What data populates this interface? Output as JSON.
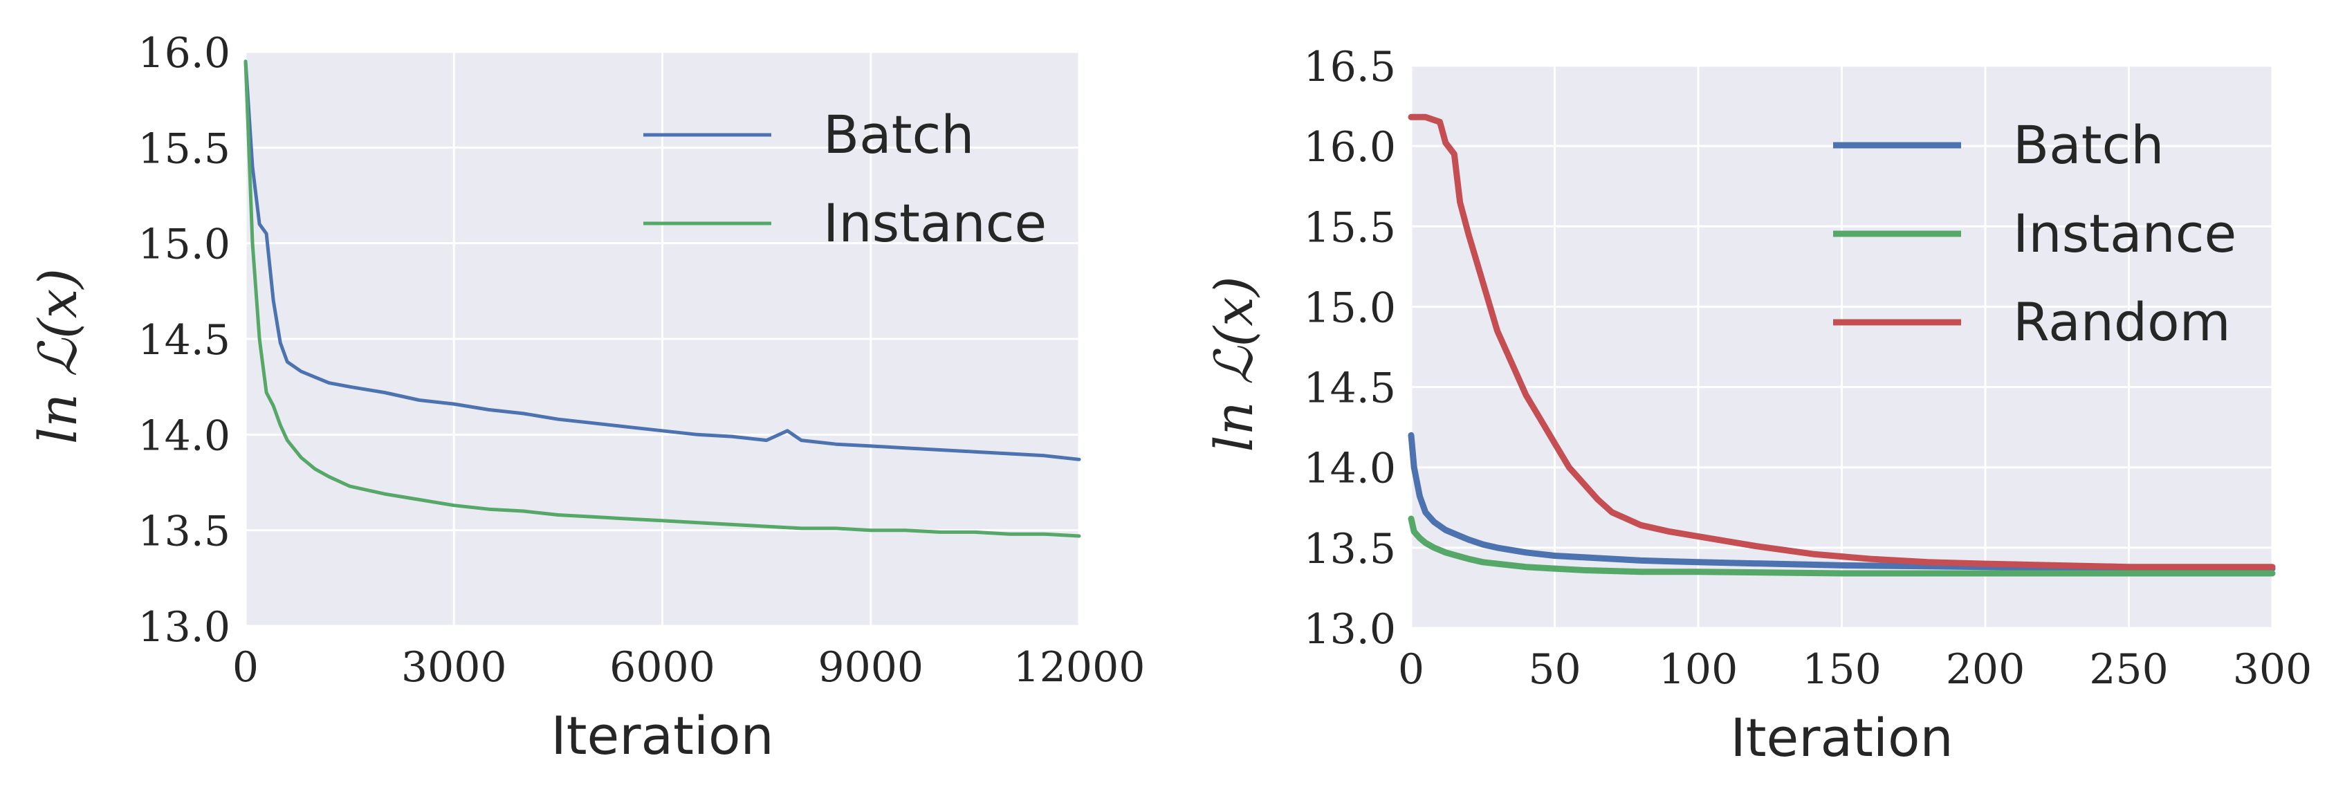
{
  "chart_data": [
    {
      "type": "line",
      "xlabel": "Iteration",
      "ylabel": "ln ℒ(x)",
      "xlim": [
        0,
        12000
      ],
      "ylim": [
        13.0,
        16.0
      ],
      "xticks": [
        "0",
        "3000",
        "6000",
        "9000",
        "12000"
      ],
      "yticks": [
        "13.0",
        "13.5",
        "14.0",
        "14.5",
        "15.0",
        "15.5",
        "16.0"
      ],
      "grid": true,
      "legend_position": "top-right",
      "series": [
        {
          "name": "Batch",
          "color": "#4c72b0",
          "x": [
            0,
            100,
            200,
            300,
            400,
            500,
            600,
            800,
            1000,
            1200,
            1500,
            2000,
            2500,
            3000,
            3500,
            4000,
            4500,
            5000,
            5500,
            6000,
            6500,
            7000,
            7500,
            7800,
            8000,
            8500,
            9000,
            9500,
            10000,
            10500,
            11000,
            11500,
            12000
          ],
          "y": [
            15.95,
            15.4,
            15.1,
            15.05,
            14.7,
            14.48,
            14.38,
            14.33,
            14.3,
            14.27,
            14.25,
            14.22,
            14.18,
            14.16,
            14.13,
            14.11,
            14.08,
            14.06,
            14.04,
            14.02,
            14.0,
            13.99,
            13.97,
            14.02,
            13.97,
            13.95,
            13.94,
            13.93,
            13.92,
            13.91,
            13.9,
            13.89,
            13.87
          ]
        },
        {
          "name": "Instance",
          "color": "#55a868",
          "x": [
            0,
            100,
            200,
            300,
            400,
            500,
            600,
            800,
            1000,
            1200,
            1500,
            2000,
            2500,
            3000,
            3500,
            4000,
            4500,
            5000,
            5500,
            6000,
            6500,
            7000,
            7500,
            8000,
            8500,
            9000,
            9500,
            10000,
            10500,
            11000,
            11500,
            12000
          ],
          "y": [
            15.95,
            15.0,
            14.5,
            14.22,
            14.15,
            14.05,
            13.97,
            13.88,
            13.82,
            13.78,
            13.73,
            13.69,
            13.66,
            13.63,
            13.61,
            13.6,
            13.58,
            13.57,
            13.56,
            13.55,
            13.54,
            13.53,
            13.52,
            13.51,
            13.51,
            13.5,
            13.5,
            13.49,
            13.49,
            13.48,
            13.48,
            13.47
          ]
        }
      ]
    },
    {
      "type": "line",
      "xlabel": "Iteration",
      "ylabel": "ln ℒ(x)",
      "xlim": [
        0,
        300
      ],
      "ylim": [
        13.0,
        16.5
      ],
      "xticks": [
        "0",
        "50",
        "100",
        "150",
        "200",
        "250",
        "300"
      ],
      "yticks": [
        "13.0",
        "13.5",
        "14.0",
        "14.5",
        "15.0",
        "15.5",
        "16.0",
        "16.5"
      ],
      "grid": true,
      "legend_position": "top-right",
      "series": [
        {
          "name": "Batch",
          "color": "#4c72b0",
          "x": [
            0,
            1,
            3,
            5,
            8,
            12,
            16,
            20,
            25,
            30,
            40,
            50,
            60,
            80,
            100,
            150,
            200,
            250,
            300
          ],
          "y": [
            14.2,
            14.0,
            13.82,
            13.72,
            13.66,
            13.61,
            13.58,
            13.55,
            13.52,
            13.5,
            13.47,
            13.45,
            13.44,
            13.42,
            13.41,
            13.39,
            13.38,
            13.37,
            13.37
          ]
        },
        {
          "name": "Instance",
          "color": "#55a868",
          "x": [
            0,
            1,
            3,
            5,
            8,
            12,
            16,
            20,
            25,
            30,
            40,
            50,
            60,
            80,
            100,
            150,
            200,
            250,
            300
          ],
          "y": [
            13.68,
            13.6,
            13.56,
            13.53,
            13.5,
            13.47,
            13.45,
            13.43,
            13.41,
            13.4,
            13.38,
            13.37,
            13.36,
            13.35,
            13.35,
            13.34,
            13.34,
            13.34,
            13.34
          ]
        },
        {
          "name": "Random",
          "color": "#c44e52",
          "x": [
            0,
            5,
            10,
            12,
            15,
            17,
            20,
            25,
            30,
            35,
            40,
            45,
            50,
            55,
            60,
            65,
            70,
            75,
            80,
            90,
            100,
            110,
            120,
            140,
            160,
            180,
            200,
            250,
            300
          ],
          "y": [
            16.18,
            16.18,
            16.15,
            16.02,
            15.95,
            15.65,
            15.45,
            15.15,
            14.85,
            14.65,
            14.45,
            14.3,
            14.15,
            14.0,
            13.9,
            13.8,
            13.72,
            13.68,
            13.64,
            13.6,
            13.57,
            13.54,
            13.51,
            13.46,
            13.43,
            13.41,
            13.4,
            13.38,
            13.38
          ]
        }
      ]
    }
  ]
}
